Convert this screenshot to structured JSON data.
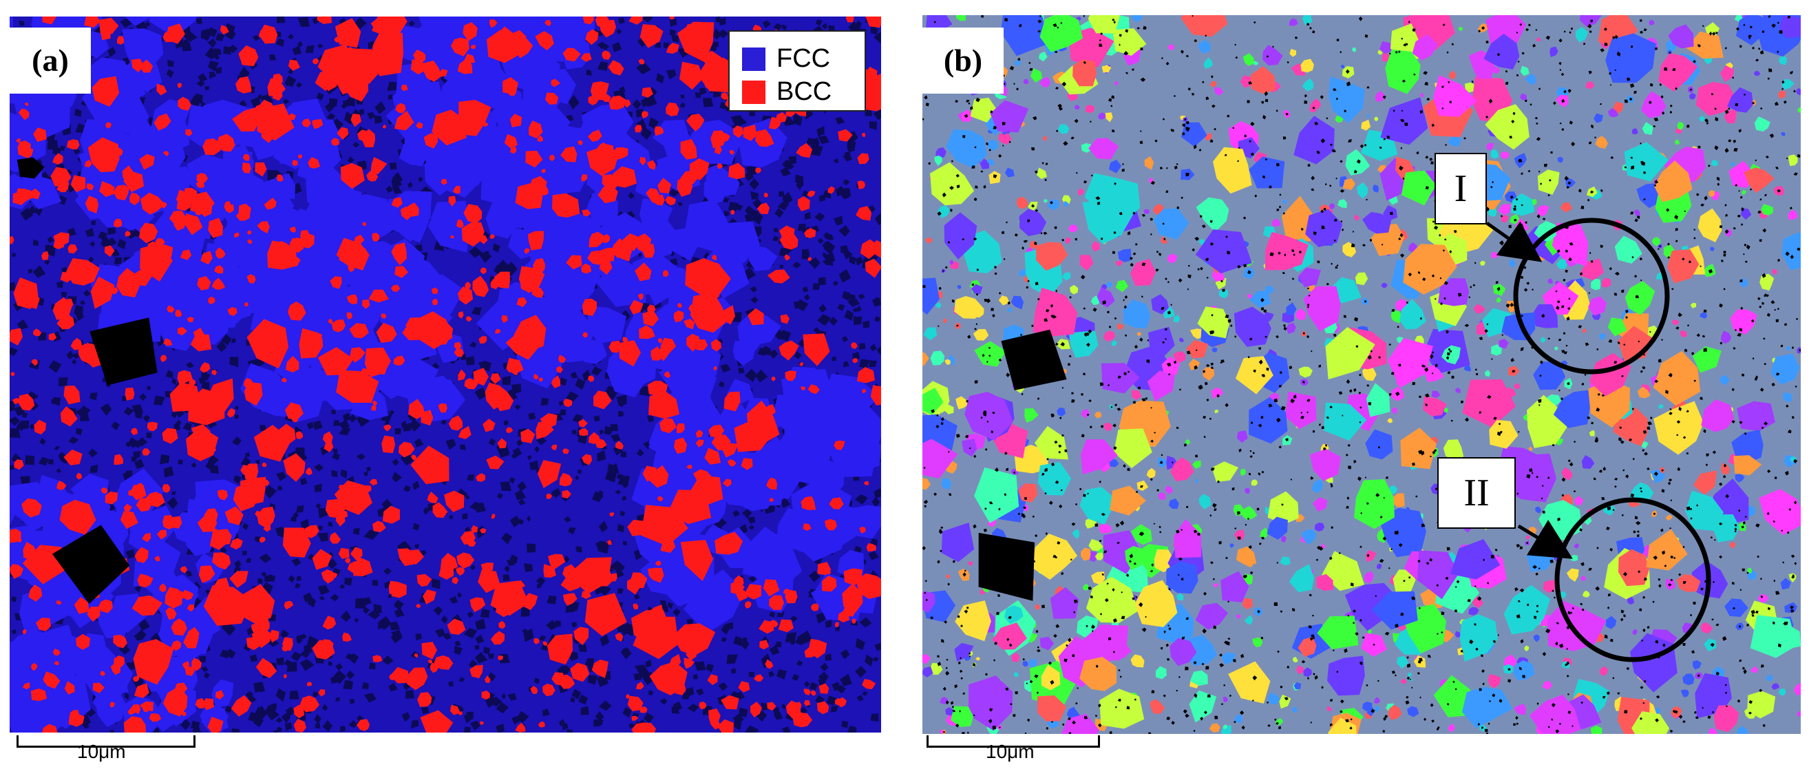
{
  "panels": {
    "a": {
      "label": "(a)",
      "map": "phase-map"
    },
    "b": {
      "label": "(b)",
      "map": "orientation-map"
    }
  },
  "legend": {
    "items": [
      {
        "label": "FCC",
        "color": "#2a1ed6"
      },
      {
        "label": "BCC",
        "color": "#ff1a1a"
      }
    ]
  },
  "scale_bars": {
    "a": "10μm",
    "b": "10μm"
  },
  "regions": [
    {
      "label": "I"
    },
    {
      "label": "II"
    }
  ],
  "colors": {
    "fcc": "#1c12b6",
    "bcc": "#ff1a1a",
    "void": "#000000",
    "circle": "#000000"
  }
}
